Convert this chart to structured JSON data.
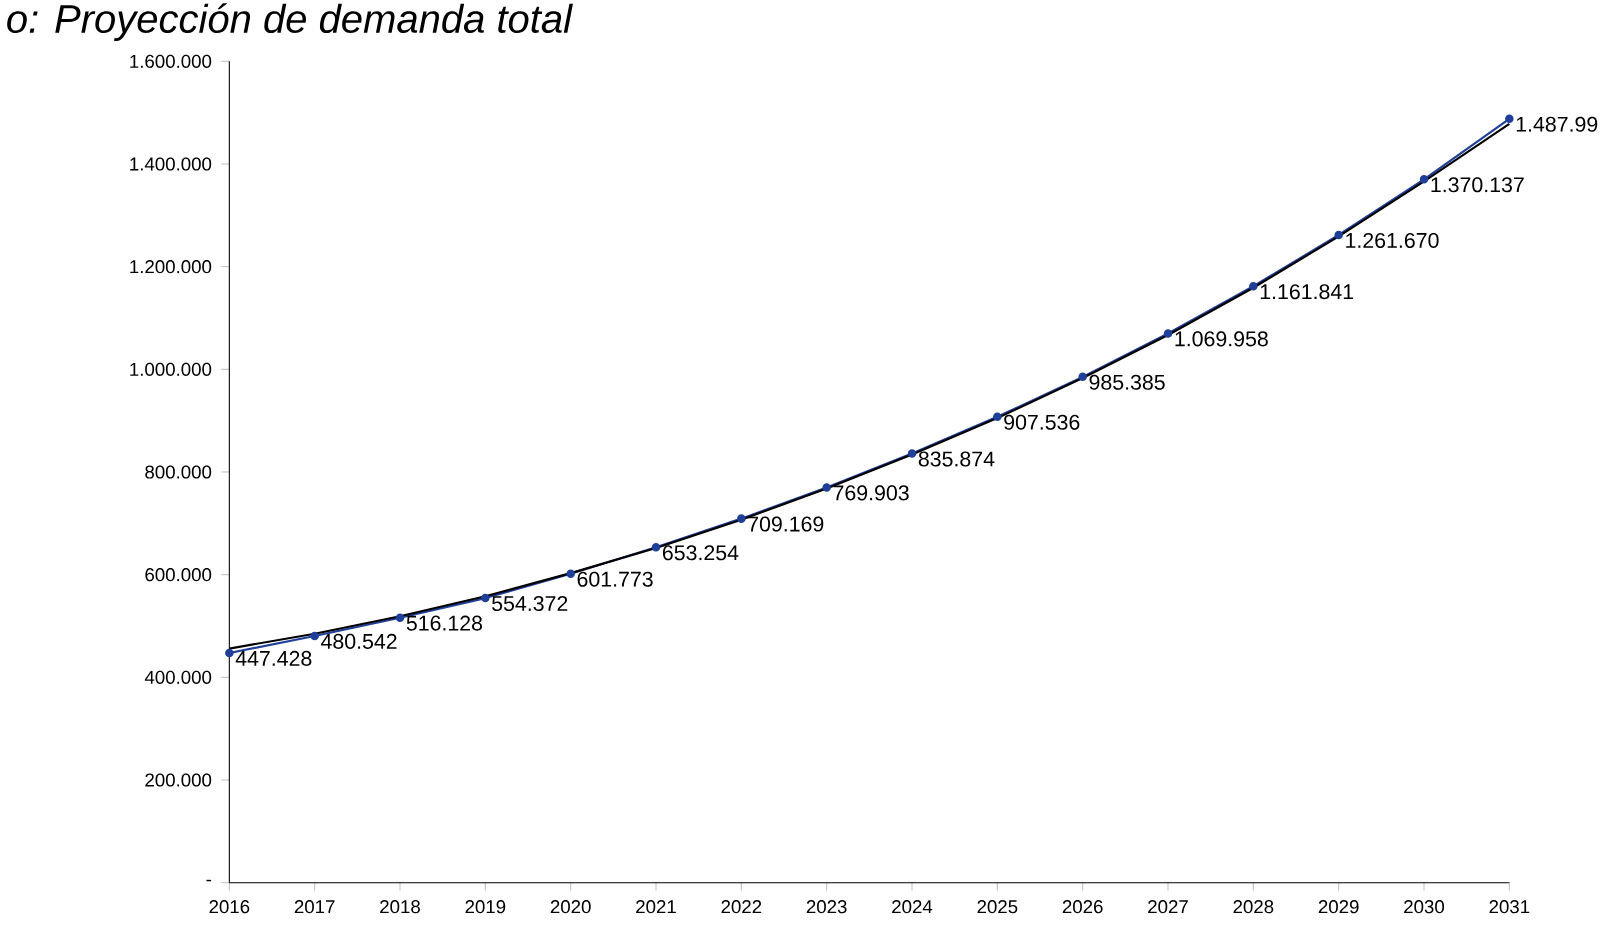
{
  "chart_data": {
    "type": "line",
    "title": "o: Proyección de demanda total",
    "x": [
      2016,
      2017,
      2018,
      2019,
      2020,
      2021,
      2022,
      2023,
      2024,
      2025,
      2026,
      2027,
      2028,
      2029,
      2030,
      2031
    ],
    "xlim": [
      2016,
      2031
    ],
    "xticks": [
      2016,
      2017,
      2018,
      2019,
      2020,
      2021,
      2022,
      2023,
      2024,
      2025,
      2026,
      2027,
      2028,
      2029,
      2030,
      2031
    ],
    "ylim": [
      0,
      1600000
    ],
    "yticks": [
      {
        "value": 0,
        "label": "-"
      },
      {
        "value": 200000,
        "label": "200.000"
      },
      {
        "value": 400000,
        "label": "400.000"
      },
      {
        "value": 600000,
        "label": "600.000"
      },
      {
        "value": 800000,
        "label": "800.000"
      },
      {
        "value": 1000000,
        "label": "1.000.000"
      },
      {
        "value": 1200000,
        "label": "1.200.000"
      },
      {
        "value": 1400000,
        "label": "1.400.000"
      },
      {
        "value": 1600000,
        "label": "1.600.000"
      }
    ],
    "grid": false,
    "series": [
      {
        "color": "#1f3f99",
        "marker": "circle",
        "values": [
          447428,
          480542,
          516128,
          554372,
          601773,
          653254,
          709169,
          769903,
          835874,
          907536,
          985385,
          1069958,
          1161841,
          1261670,
          1370137,
          1487990
        ],
        "value_labels": [
          "447.428",
          "480.542",
          "516.128",
          "554.372",
          "601.773",
          "653.254",
          "709.169",
          "769.903",
          "835.874",
          "907.536",
          "985.385",
          "1.069.958",
          "1.161.841",
          "1.261.670",
          "1.370.137",
          "1.487.99"
        ]
      },
      {
        "type": "line",
        "color": "#000000",
        "marker": "none",
        "values": [
          456000,
          485000,
          519000,
          558000,
          603000,
          652000,
          707000,
          768000,
          834000,
          905000,
          983000,
          1067000,
          1159000,
          1259000,
          1366000,
          1478000
        ]
      }
    ]
  }
}
